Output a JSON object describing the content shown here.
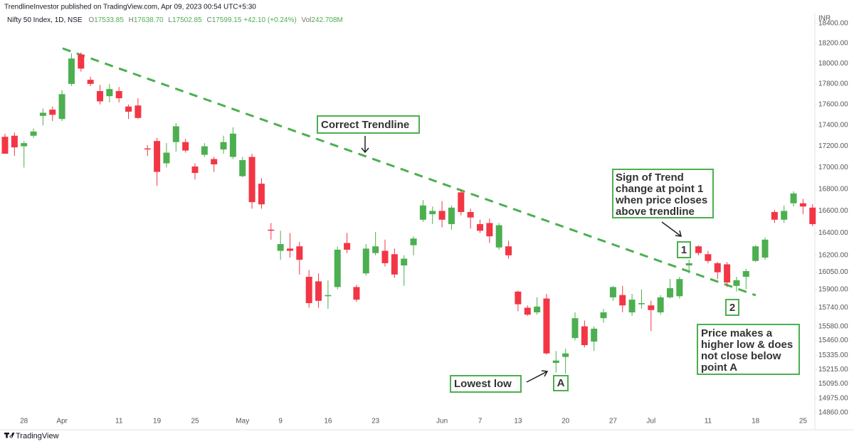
{
  "header": {
    "published": "TrendlineInvestor published on TradingView.com, Apr 09, 2023 00:54 UTC+5:30",
    "symbol": "Nifty 50 Index, 1D, NSE",
    "legend": [
      {
        "key": "O",
        "value": "17533.85"
      },
      {
        "key": "H",
        "value": "17638.70"
      },
      {
        "key": "L",
        "value": "17502.85"
      },
      {
        "key": "C",
        "value": "17599.15"
      },
      {
        "key": "",
        "value": "+42.10 (+0.24%)"
      },
      {
        "key": "Vol",
        "value": "242.708M"
      }
    ],
    "currency": "INR"
  },
  "chart_data": {
    "type": "candlestick",
    "categories": [
      null,
      null,
      "28",
      null,
      null,
      null,
      "Apr",
      null,
      null,
      null,
      null,
      null,
      "11",
      null,
      null,
      null,
      "19",
      null,
      null,
      null,
      "25",
      null,
      null,
      null,
      null,
      "May",
      null,
      null,
      null,
      "9",
      null,
      null,
      null,
      null,
      "16",
      null,
      null,
      null,
      null,
      "23",
      null,
      null,
      null,
      null,
      null,
      null,
      "Jun",
      null,
      null,
      null,
      "7",
      null,
      null,
      null,
      "13",
      null,
      null,
      null,
      null,
      "20",
      null,
      null,
      null,
      null,
      "27",
      null,
      null,
      null,
      "Jul",
      null,
      null,
      null,
      null,
      null,
      "11",
      null,
      null,
      null,
      null,
      "18",
      null,
      null,
      null,
      null,
      "25",
      null
    ],
    "open": [
      17290,
      17300,
      17200,
      17300,
      17490,
      17550,
      17460,
      17800,
      18090,
      17840,
      17730,
      17680,
      17730,
      17580,
      17590,
      17180,
      17250,
      17040,
      17240,
      17240,
      17010,
      17120,
      17080,
      17170,
      17100,
      16920,
      17100,
      16850,
      16430,
      16240,
      16260,
      16280,
      16010,
      15970,
      15840,
      15920,
      16310,
      15920,
      16040,
      16220,
      16240,
      16210,
      16110,
      16290,
      16520,
      16570,
      16600,
      16480,
      16770,
      16590,
      16480,
      16490,
      16270,
      16280,
      15880,
      15740,
      15700,
      15820,
      15270,
      15320,
      15480,
      15580,
      15450,
      15650,
      15830,
      15850,
      15700,
      15770,
      15760,
      15700,
      15830,
      15840,
      16110,
      16280,
      16210,
      16130,
      16120,
      15930,
      16010,
      16150,
      16180,
      16590,
      16520,
      16670,
      16670,
      16630
    ],
    "high": [
      17320,
      17330,
      17250,
      17370,
      17560,
      17580,
      17740,
      18100,
      18110,
      17870,
      17790,
      17800,
      17770,
      17600,
      17660,
      17210,
      17280,
      17230,
      17420,
      17270,
      17040,
      17230,
      17100,
      17300,
      17380,
      17100,
      17130,
      16900,
      16490,
      16420,
      16400,
      16320,
      16070,
      16040,
      15980,
      16280,
      16400,
      15940,
      16300,
      16410,
      16340,
      16260,
      16200,
      16370,
      16700,
      16640,
      16690,
      16650,
      16800,
      16620,
      16520,
      16530,
      16490,
      16330,
      15890,
      15760,
      15830,
      15860,
      15370,
      15390,
      15700,
      15630,
      15580,
      15730,
      15930,
      15930,
      15860,
      15900,
      15800,
      15850,
      15990,
      16010,
      16160,
      16290,
      16240,
      16140,
      16140,
      16010,
      16080,
      16290,
      16360,
      16610,
      16650,
      16780,
      16710,
      16660
    ],
    "low": [
      17130,
      17110,
      17000,
      17280,
      17400,
      17440,
      17440,
      17780,
      17920,
      17780,
      17600,
      17620,
      17620,
      17460,
      17460,
      17110,
      16830,
      17000,
      17150,
      17140,
      16890,
      17100,
      16960,
      17130,
      17080,
      16910,
      16620,
      16620,
      16340,
      16160,
      16180,
      16030,
      15740,
      15740,
      15730,
      15900,
      16220,
      15790,
      16020,
      16200,
      16100,
      16000,
      15930,
      16200,
      16500,
      16480,
      16450,
      16430,
      16560,
      16440,
      16400,
      16310,
      16250,
      16170,
      15710,
      15670,
      15680,
      15340,
      15190,
      15180,
      15460,
      15400,
      15370,
      15610,
      15800,
      15700,
      15670,
      15730,
      15540,
      15680,
      15820,
      15820,
      16040,
      16200,
      16130,
      15990,
      15920,
      15880,
      15900,
      16140,
      16160,
      16490,
      16490,
      16640,
      16570,
      16460
    ],
    "close": [
      17130,
      17190,
      17230,
      17340,
      17520,
      17500,
      17700,
      18050,
      17950,
      17800,
      17630,
      17750,
      17660,
      17530,
      17470,
      17170,
      16960,
      17140,
      17390,
      17160,
      16950,
      17200,
      17030,
      17240,
      17320,
      17070,
      16680,
      16660,
      16420,
      16300,
      16240,
      16160,
      15780,
      15800,
      15850,
      16250,
      16250,
      15810,
      16260,
      16280,
      16130,
      16030,
      16170,
      16350,
      16650,
      16600,
      16520,
      16630,
      16590,
      16540,
      16420,
      16370,
      16470,
      16200,
      15770,
      15680,
      15750,
      15350,
      15290,
      15350,
      15650,
      15420,
      15560,
      15700,
      15920,
      15760,
      15810,
      15780,
      15720,
      15830,
      15910,
      15990,
      16130,
      16220,
      16150,
      16050,
      15960,
      15980,
      16060,
      16280,
      16340,
      16520,
      16600,
      16760,
      16640,
      16480
    ],
    "up_color": "#4caf50",
    "down_color": "#f23645",
    "yscale": "log",
    "ylim": [
      14800,
      18480
    ],
    "yticks": [
      {
        "value": 18400,
        "label": "18400.00"
      },
      {
        "value": 18200,
        "label": "18200.00"
      },
      {
        "value": 18000,
        "label": "18000.00"
      },
      {
        "value": 17800,
        "label": "17800.00"
      },
      {
        "value": 17600,
        "label": "17600.00"
      },
      {
        "value": 17400,
        "label": "17400.00"
      },
      {
        "value": 17200,
        "label": "17200.00"
      },
      {
        "value": 17000,
        "label": "17000.00"
      },
      {
        "value": 16800,
        "label": "16800.00"
      },
      {
        "value": 16600,
        "label": "16600.00"
      },
      {
        "value": 16400,
        "label": "16400.00"
      },
      {
        "value": 16200,
        "label": "16200.00"
      },
      {
        "value": 16050,
        "label": "16050.00"
      },
      {
        "value": 15900,
        "label": "15900.00"
      },
      {
        "value": 15740,
        "label": "15740.00"
      },
      {
        "value": 15580,
        "label": "15580.00"
      },
      {
        "value": 15460,
        "label": "15460.00"
      },
      {
        "value": 15335,
        "label": "15335.00"
      },
      {
        "value": 15215,
        "label": "15215.00"
      },
      {
        "value": 15095,
        "label": "15095.00"
      },
      {
        "value": 14975,
        "label": "14975.00"
      },
      {
        "value": 14860,
        "label": "14860.00"
      }
    ],
    "grid": false,
    "annotations": {
      "trendline": "Correct Trendline",
      "sign": [
        "Sign of Trend",
        "change at point 1",
        "when price closes",
        "above trendline"
      ],
      "point1": "1",
      "point2": "2",
      "higher_low": [
        "Price makes a",
        "higher low & does",
        "not close below",
        "point A"
      ],
      "lowest": "Lowest low",
      "pointA": "A"
    }
  },
  "footer": {
    "brand": "TradingView"
  }
}
